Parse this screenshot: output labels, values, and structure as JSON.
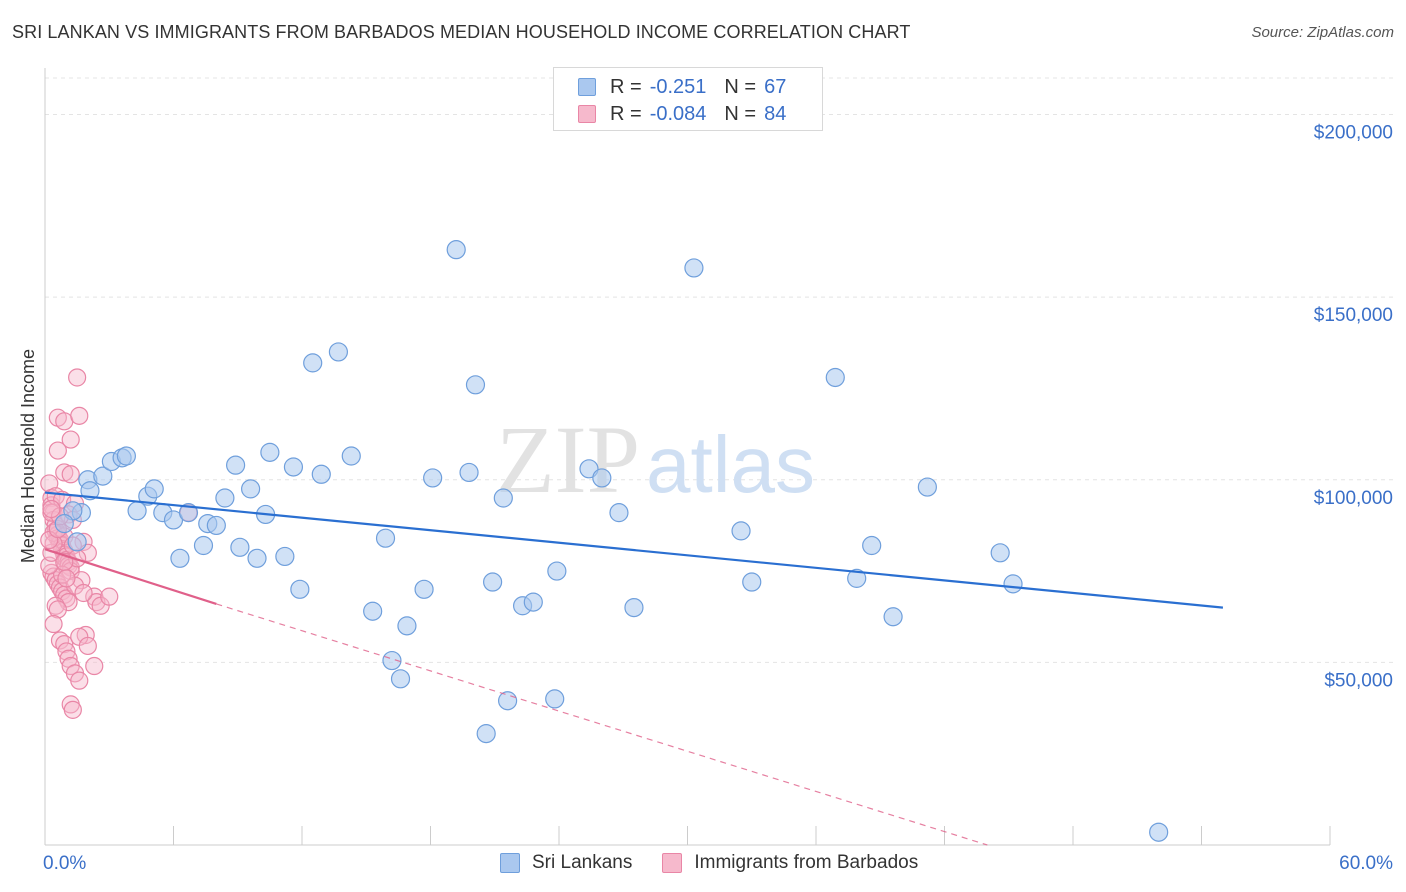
{
  "header": {
    "title": "SRI LANKAN VS IMMIGRANTS FROM BARBADOS MEDIAN HOUSEHOLD INCOME CORRELATION CHART",
    "source": "Source: ZipAtlas.com"
  },
  "legend": {
    "rows": [
      {
        "r_label": "R =",
        "r_value": "-0.251",
        "n_label": "N =",
        "n_value": "67"
      },
      {
        "r_label": "R =",
        "r_value": "-0.084",
        "n_label": "N =",
        "n_value": "84"
      }
    ]
  },
  "bottom_legend": {
    "series1": "Sri Lankans",
    "series2": "Immigrants from Barbados"
  },
  "watermark": {
    "part1": "ZIP",
    "part2": "atlas"
  },
  "colors": {
    "blue_fill": "#aac8ef",
    "blue_stroke": "#6f9fdc",
    "blue_line": "#2a6fd1",
    "pink_fill": "#f6b9cc",
    "pink_stroke": "#e986a6",
    "pink_line": "#e0608a",
    "axis_label": "#3a6fc8",
    "grid": "#e4e4e4"
  },
  "chart_data": {
    "type": "scatter",
    "title": "SRI LANKAN VS IMMIGRANTS FROM BARBADOS MEDIAN HOUSEHOLD INCOME CORRELATION CHART",
    "xlabel": "",
    "ylabel": "Median Household Income",
    "xlim": [
      0,
      60
    ],
    "ylim": [
      0,
      210000
    ],
    "x_tick_labels": [
      "0.0%",
      "60.0%"
    ],
    "y_ticks": [
      50000,
      100000,
      150000,
      200000
    ],
    "y_tick_labels": [
      "$50,000",
      "$100,000",
      "$150,000",
      "$200,000"
    ],
    "series": [
      {
        "name": "Sri Lankans",
        "R": -0.251,
        "N": 67,
        "trend": {
          "x": [
            0,
            55
          ],
          "y": [
            96500,
            65000
          ]
        },
        "points": [
          [
            1.7,
            91000
          ],
          [
            2.0,
            100000
          ],
          [
            2.7,
            101000
          ],
          [
            3.1,
            105000
          ],
          [
            3.6,
            106000
          ],
          [
            3.8,
            106500
          ],
          [
            4.3,
            91500
          ],
          [
            4.8,
            95500
          ],
          [
            5.1,
            97500
          ],
          [
            5.5,
            91000
          ],
          [
            6.0,
            89000
          ],
          [
            6.3,
            78500
          ],
          [
            6.7,
            91000
          ],
          [
            7.4,
            82000
          ],
          [
            7.6,
            88000
          ],
          [
            8.0,
            87500
          ],
          [
            8.4,
            95000
          ],
          [
            8.9,
            104000
          ],
          [
            9.1,
            81500
          ],
          [
            9.6,
            97500
          ],
          [
            9.9,
            78500
          ],
          [
            10.3,
            90500
          ],
          [
            10.5,
            107500
          ],
          [
            11.2,
            79000
          ],
          [
            11.6,
            103500
          ],
          [
            11.9,
            70000
          ],
          [
            12.5,
            132000
          ],
          [
            12.9,
            101500
          ],
          [
            13.7,
            135000
          ],
          [
            14.3,
            106500
          ],
          [
            15.3,
            64000
          ],
          [
            15.9,
            84000
          ],
          [
            16.2,
            50500
          ],
          [
            16.6,
            45500
          ],
          [
            16.9,
            60000
          ],
          [
            17.7,
            70000
          ],
          [
            18.1,
            100500
          ],
          [
            19.2,
            163000
          ],
          [
            19.8,
            102000
          ],
          [
            20.1,
            126000
          ],
          [
            20.9,
            72000
          ],
          [
            21.4,
            95000
          ],
          [
            21.6,
            39500
          ],
          [
            22.3,
            65500
          ],
          [
            22.8,
            66500
          ],
          [
            23.8,
            40000
          ],
          [
            23.9,
            75000
          ],
          [
            25.4,
            103000
          ],
          [
            26.0,
            100500
          ],
          [
            26.8,
            91000
          ],
          [
            27.5,
            65000
          ],
          [
            30.3,
            158000
          ],
          [
            32.5,
            86000
          ],
          [
            33.0,
            72000
          ],
          [
            36.9,
            128000
          ],
          [
            37.9,
            73000
          ],
          [
            38.6,
            82000
          ],
          [
            39.6,
            62500
          ],
          [
            41.2,
            98000
          ],
          [
            44.6,
            80000
          ],
          [
            45.2,
            71500
          ],
          [
            52.0,
            3500
          ],
          [
            20.6,
            30500
          ],
          [
            2.1,
            97000
          ],
          [
            1.3,
            91500
          ],
          [
            0.9,
            88000
          ],
          [
            1.5,
            83000
          ]
        ]
      },
      {
        "name": "Immigrants from Barbados",
        "R": -0.084,
        "N": 84,
        "trend": {
          "x": [
            0,
            8
          ],
          "y": [
            81000,
            66000
          ]
        },
        "trend_extended": {
          "x": [
            8,
            44
          ],
          "y": [
            66000,
            0
          ]
        },
        "points": [
          [
            0.2,
            99000
          ],
          [
            0.3,
            95000
          ],
          [
            0.3,
            93000
          ],
          [
            0.4,
            91000
          ],
          [
            0.4,
            89000
          ],
          [
            0.5,
            87500
          ],
          [
            0.5,
            86000
          ],
          [
            0.6,
            85000
          ],
          [
            0.6,
            84000
          ],
          [
            0.7,
            83500
          ],
          [
            0.7,
            82500
          ],
          [
            0.8,
            82000
          ],
          [
            0.8,
            81000
          ],
          [
            0.9,
            80500
          ],
          [
            0.9,
            79500
          ],
          [
            1.0,
            79000
          ],
          [
            1.0,
            78000
          ],
          [
            1.1,
            77500
          ],
          [
            1.1,
            76500
          ],
          [
            1.2,
            76000
          ],
          [
            1.2,
            75000
          ],
          [
            0.3,
            74500
          ],
          [
            0.4,
            73500
          ],
          [
            0.5,
            72500
          ],
          [
            0.6,
            71500
          ],
          [
            0.7,
            70500
          ],
          [
            0.8,
            69500
          ],
          [
            0.9,
            68500
          ],
          [
            1.0,
            67500
          ],
          [
            1.1,
            66500
          ],
          [
            0.5,
            65500
          ],
          [
            0.6,
            64500
          ],
          [
            0.4,
            60500
          ],
          [
            0.7,
            56000
          ],
          [
            0.9,
            55000
          ],
          [
            1.0,
            53000
          ],
          [
            1.1,
            51000
          ],
          [
            1.2,
            49000
          ],
          [
            1.4,
            47000
          ],
          [
            1.6,
            45000
          ],
          [
            1.2,
            38500
          ],
          [
            1.3,
            37000
          ],
          [
            1.5,
            128000
          ],
          [
            0.6,
            117000
          ],
          [
            0.9,
            116000
          ],
          [
            1.6,
            117500
          ],
          [
            1.2,
            111000
          ],
          [
            0.6,
            108000
          ],
          [
            0.9,
            102000
          ],
          [
            1.2,
            101500
          ],
          [
            0.5,
            95500
          ],
          [
            0.8,
            94500
          ],
          [
            1.4,
            93500
          ],
          [
            0.3,
            91000
          ],
          [
            1.1,
            90500
          ],
          [
            1.3,
            89000
          ],
          [
            0.4,
            85500
          ],
          [
            0.9,
            84500
          ],
          [
            1.8,
            83000
          ],
          [
            1.3,
            82000
          ],
          [
            2.0,
            80000
          ],
          [
            1.5,
            78500
          ],
          [
            1.7,
            72500
          ],
          [
            2.3,
            68000
          ],
          [
            2.4,
            66500
          ],
          [
            2.6,
            65500
          ],
          [
            3.0,
            68000
          ],
          [
            1.9,
            57500
          ],
          [
            1.6,
            57000
          ],
          [
            2.0,
            54500
          ],
          [
            2.3,
            49000
          ],
          [
            1.4,
            71000
          ],
          [
            0.8,
            74000
          ],
          [
            0.2,
            76500
          ],
          [
            0.3,
            80000
          ],
          [
            0.4,
            82500
          ],
          [
            0.2,
            83500
          ],
          [
            0.6,
            86500
          ],
          [
            0.7,
            90000
          ],
          [
            0.3,
            92000
          ],
          [
            0.9,
            77500
          ],
          [
            1.0,
            73000
          ],
          [
            1.8,
            69000
          ],
          [
            6.7,
            91000
          ]
        ]
      }
    ]
  }
}
